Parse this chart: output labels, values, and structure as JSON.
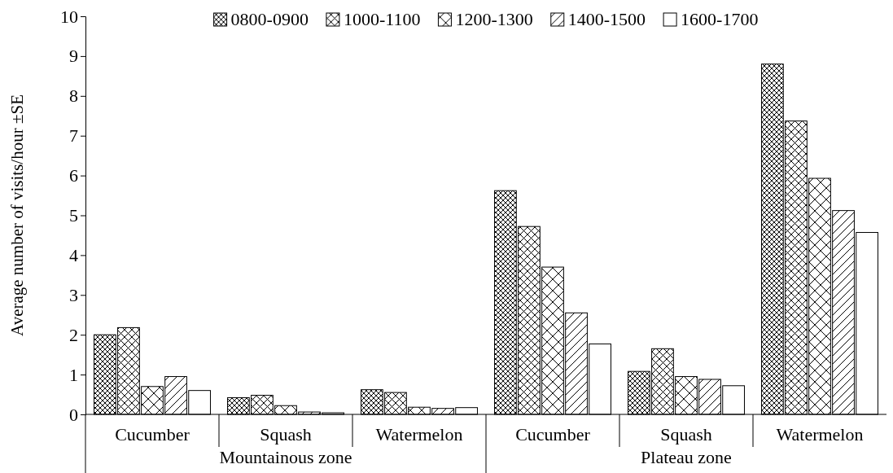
{
  "chart_data": {
    "type": "bar",
    "ylabel": "Average number of visits/hour ±SE",
    "categories": [
      "Cucumber",
      "Squash",
      "Watermelon",
      "Cucumber",
      "Squash",
      "Watermelon"
    ],
    "series": [
      {
        "name": "0800-0900",
        "color": "#000000",
        "values": [
          2.0,
          0.42,
          0.62,
          5.62,
          1.08,
          8.8
        ]
      },
      {
        "name": "1000-1100",
        "color": "#000000",
        "values": [
          2.18,
          0.48,
          0.55,
          4.72,
          1.65,
          7.37
        ]
      },
      {
        "name": "1200-1300",
        "color": "#000000",
        "values": [
          0.7,
          0.22,
          0.18,
          3.7,
          0.95,
          5.93
        ]
      },
      {
        "name": "1400-1500",
        "color": "#000000",
        "values": [
          0.95,
          0.06,
          0.15,
          2.55,
          0.88,
          5.12
        ]
      },
      {
        "name": "1600-1700",
        "color": "#000000",
        "values": [
          0.6,
          0.04,
          0.17,
          1.77,
          0.72,
          4.57
        ]
      }
    ],
    "ylim": [
      0,
      10
    ],
    "yticks": [
      0,
      1,
      2,
      3,
      4,
      5,
      6,
      7,
      8,
      9,
      10
    ],
    "legend": "top",
    "grid": false,
    "annotations": [
      "Mountainous zone",
      "Plateau zone"
    ]
  }
}
